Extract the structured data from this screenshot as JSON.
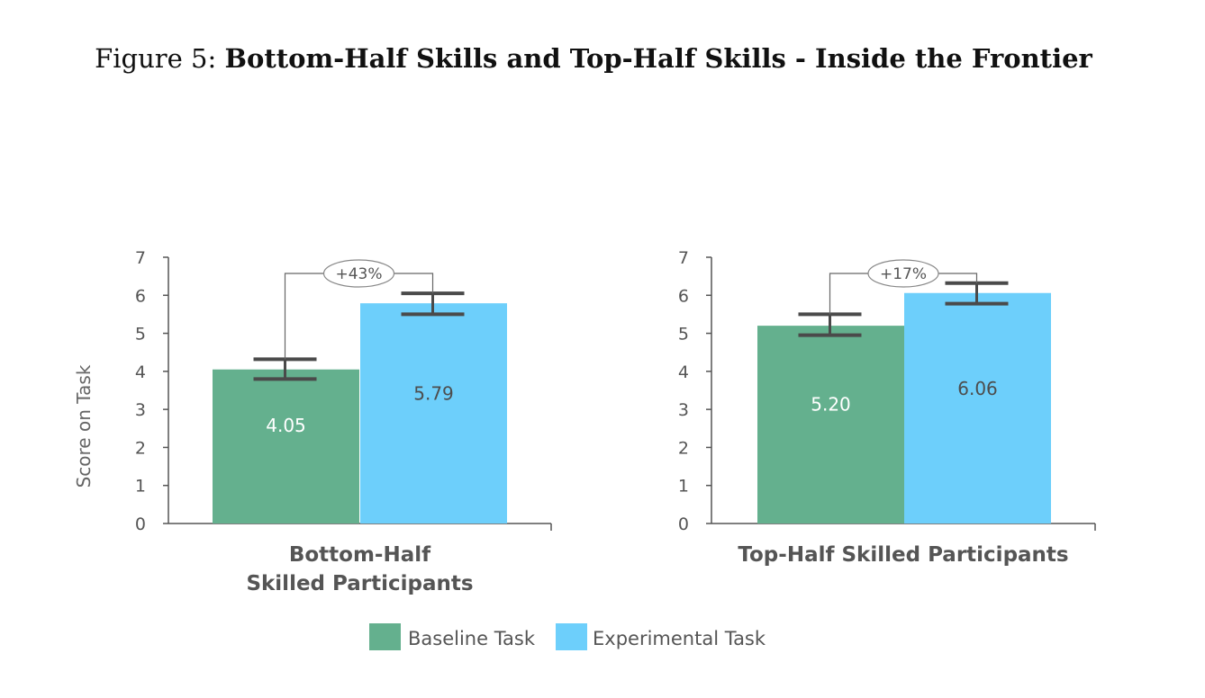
{
  "figure": {
    "prefix": "Figure 5:",
    "title": "Bottom-Half Skills and Top-Half Skills - Inside the Frontier"
  },
  "colors": {
    "baseline": "#64b08e",
    "experimental": "#6dcffb",
    "axis": "#555555",
    "errorbar": "#4a4a4a"
  },
  "chart_data": [
    {
      "type": "bar",
      "ylabel": "Score on Task",
      "ylim": [
        0,
        7
      ],
      "yticks": [
        "0",
        "1",
        "2",
        "3",
        "4",
        "5",
        "6",
        "7"
      ],
      "category_label_lines": [
        "Bottom-Half",
        "Skilled Participants"
      ],
      "series": [
        {
          "name": "Baseline Task",
          "value": 4.05,
          "label": "4.05",
          "err_low": 3.8,
          "err_high": 4.32
        },
        {
          "name": "Experimental Task",
          "value": 5.79,
          "label": "5.79",
          "err_low": 5.5,
          "err_high": 6.05
        }
      ],
      "annotation": "+43%"
    },
    {
      "type": "bar",
      "ylabel": "",
      "ylim": [
        0,
        7
      ],
      "yticks": [
        "0",
        "1",
        "2",
        "3",
        "4",
        "5",
        "6",
        "7"
      ],
      "category_label_lines": [
        "Top-Half Skilled Participants"
      ],
      "series": [
        {
          "name": "Baseline Task",
          "value": 5.2,
          "label": "5.20",
          "err_low": 4.95,
          "err_high": 5.5
        },
        {
          "name": "Experimental Task",
          "value": 6.06,
          "label": "6.06",
          "err_low": 5.78,
          "err_high": 6.32
        }
      ],
      "annotation": "+17%"
    }
  ],
  "legend": {
    "items": [
      {
        "name": "Baseline Task",
        "color": "#64b08e"
      },
      {
        "name": "Experimental Task",
        "color": "#6dcffb"
      }
    ],
    "placement": "bottom-center"
  }
}
